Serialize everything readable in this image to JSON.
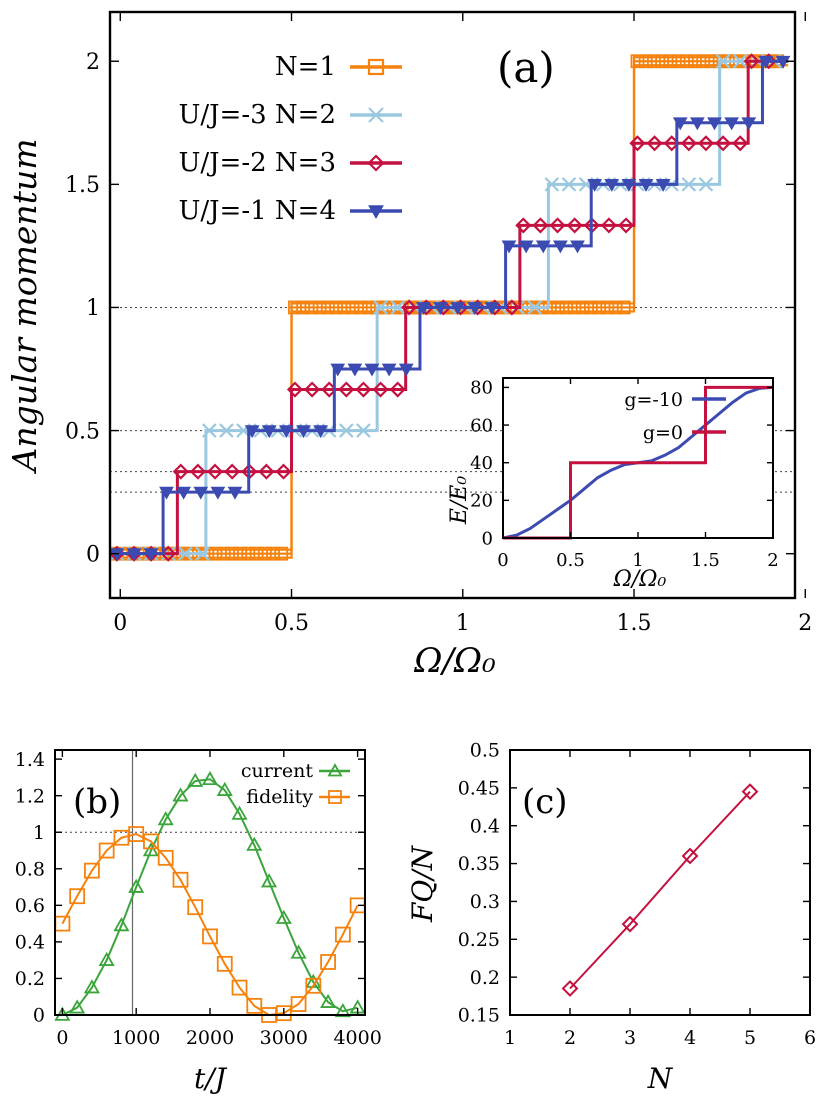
{
  "chart_data": [
    {
      "id": "a",
      "type": "line",
      "panel_label": "(a)",
      "xlabel": "Ω/Ω₀",
      "ylabel": "Angular momentum",
      "xlim": [
        -0.03,
        1.97
      ],
      "ylim": [
        -0.18,
        2.2
      ],
      "xticks": [
        0,
        0.5,
        1,
        1.5,
        2
      ],
      "xtick_labels": [
        "0",
        "0.5",
        "1",
        "1.5",
        "2"
      ],
      "yticks": [
        0,
        0.5,
        1,
        1.5,
        2
      ],
      "ytick_labels": [
        "0",
        "0.5",
        "1",
        "1.5",
        "2"
      ],
      "ref_lines": [
        0.25,
        0.3333,
        0.5,
        1
      ],
      "legend": [
        {
          "label": "N=1",
          "color": "#f5820d",
          "marker": "square"
        },
        {
          "label": "U/J=-3 N=2",
          "color": "#9ac8e0",
          "marker": "cross"
        },
        {
          "label": "U/J=-2 N=3",
          "color": "#c4113f",
          "marker": "diamond"
        },
        {
          "label": "U/J=-1 N=4",
          "color": "#3b4bb1",
          "marker": "triangle-down"
        }
      ],
      "series": [
        {
          "name": "N=1",
          "color": "#f5820d",
          "steps": [
            0.5,
            1.5
          ],
          "levels": [
            0,
            1,
            2
          ]
        },
        {
          "name": "N=2",
          "color": "#9ac8e0",
          "steps": [
            0.25,
            0.75,
            1.25,
            1.75
          ],
          "levels": [
            0,
            0.5,
            1,
            1.5,
            2
          ]
        },
        {
          "name": "N=3",
          "color": "#c4113f",
          "steps": [
            0.1667,
            0.5,
            0.8333,
            1.1667,
            1.5,
            1.8333
          ],
          "levels": [
            0,
            0.3333,
            0.6667,
            1,
            1.3333,
            1.6667,
            2
          ]
        },
        {
          "name": "N=4",
          "color": "#3b4bb1",
          "steps": [
            0.125,
            0.375,
            0.625,
            0.875,
            1.125,
            1.375,
            1.625,
            1.875
          ],
          "levels": [
            0,
            0.25,
            0.5,
            0.75,
            1,
            1.25,
            1.5,
            1.75,
            2
          ]
        }
      ],
      "inset": {
        "xlabel": "Ω/Ω₀",
        "ylabel": "E/E₀",
        "xlim": [
          0,
          2
        ],
        "ylim": [
          0,
          85
        ],
        "xticks": [
          0,
          0.5,
          1,
          1.5,
          2
        ],
        "xtick_labels": [
          "0",
          "0.5",
          "1",
          "1.5",
          "2"
        ],
        "yticks": [
          0,
          20,
          40,
          60,
          80
        ],
        "ytick_labels": [
          "0",
          "20",
          "40",
          "60",
          "80"
        ],
        "series": [
          {
            "name": "g=-10",
            "color": "#3b4bb1",
            "x": [
              0,
              0.1,
              0.2,
              0.3,
              0.4,
              0.5,
              0.6,
              0.7,
              0.8,
              0.9,
              1.0,
              1.1,
              1.2,
              1.3,
              1.4,
              1.5,
              1.6,
              1.7,
              1.8,
              1.9,
              2.0
            ],
            "y": [
              0,
              1.5,
              5,
              10,
              15,
              20,
              26,
              32,
              36,
              39,
              40,
              41,
              44,
              48,
              54,
              60,
              66,
              72,
              77,
              79.5,
              80
            ]
          },
          {
            "name": "g=0",
            "color": "#c4113f",
            "x": [
              0,
              0.5,
              0.5,
              1.5,
              1.5,
              2.0
            ],
            "y": [
              0,
              0,
              40,
              40,
              80,
              80
            ]
          }
        ]
      }
    },
    {
      "id": "b",
      "type": "line",
      "panel_label": "(b)",
      "xlabel": "t/J",
      "ylabel": "",
      "xlim": [
        -100,
        4100
      ],
      "ylim": [
        0,
        1.45
      ],
      "xticks": [
        0,
        1000,
        2000,
        3000,
        4000
      ],
      "xtick_labels": [
        "0",
        "1000",
        "2000",
        "3000",
        "4000"
      ],
      "yticks": [
        0,
        0.2,
        0.4,
        0.6,
        0.8,
        1,
        1.2,
        1.4
      ],
      "ytick_labels": [
        "0",
        "0.2",
        "0.4",
        "0.6",
        "0.8",
        "1",
        "1.2",
        "1.4"
      ],
      "ref_line_y": 1,
      "vline_x": 950,
      "series": [
        {
          "name": "current",
          "color": "#3aa53a",
          "marker": "triangle",
          "x": [
            0,
            200,
            400,
            600,
            800,
            1000,
            1200,
            1400,
            1600,
            1800,
            2000,
            2200,
            2400,
            2600,
            2800,
            3000,
            3200,
            3400,
            3600,
            3800,
            4000
          ],
          "y": [
            0.0,
            0.04,
            0.15,
            0.3,
            0.49,
            0.7,
            0.9,
            1.07,
            1.2,
            1.28,
            1.29,
            1.23,
            1.1,
            0.93,
            0.73,
            0.53,
            0.34,
            0.18,
            0.07,
            0.02,
            0.04
          ]
        },
        {
          "name": "fidelity",
          "color": "#f5820d",
          "marker": "square",
          "x": [
            0,
            200,
            400,
            600,
            800,
            1000,
            1200,
            1400,
            1600,
            1800,
            2000,
            2200,
            2400,
            2600,
            2800,
            3000,
            3200,
            3400,
            3600,
            3800,
            4000
          ],
          "y": [
            0.5,
            0.65,
            0.79,
            0.9,
            0.97,
            0.99,
            0.95,
            0.86,
            0.74,
            0.59,
            0.43,
            0.28,
            0.15,
            0.05,
            0.0,
            0.01,
            0.06,
            0.16,
            0.29,
            0.44,
            0.6
          ]
        }
      ]
    },
    {
      "id": "c",
      "type": "scatter",
      "panel_label": "(c)",
      "xlabel": "N",
      "ylabel": "FQ/N",
      "xlim": [
        1,
        6
      ],
      "ylim": [
        0.15,
        0.5
      ],
      "xticks": [
        1,
        2,
        3,
        4,
        5,
        6
      ],
      "xtick_labels": [
        "1",
        "2",
        "3",
        "4",
        "5",
        "6"
      ],
      "yticks": [
        0.15,
        0.2,
        0.25,
        0.3,
        0.35,
        0.4,
        0.45,
        0.5
      ],
      "ytick_labels": [
        "0.15",
        "0.2",
        "0.25",
        "0.3",
        "0.35",
        "0.4",
        "0.45",
        "0.5"
      ],
      "series": [
        {
          "name": "FQ/N",
          "color": "#c4113f",
          "marker": "diamond",
          "x": [
            2,
            3,
            4,
            5
          ],
          "y": [
            0.185,
            0.27,
            0.36,
            0.445
          ]
        }
      ]
    }
  ]
}
